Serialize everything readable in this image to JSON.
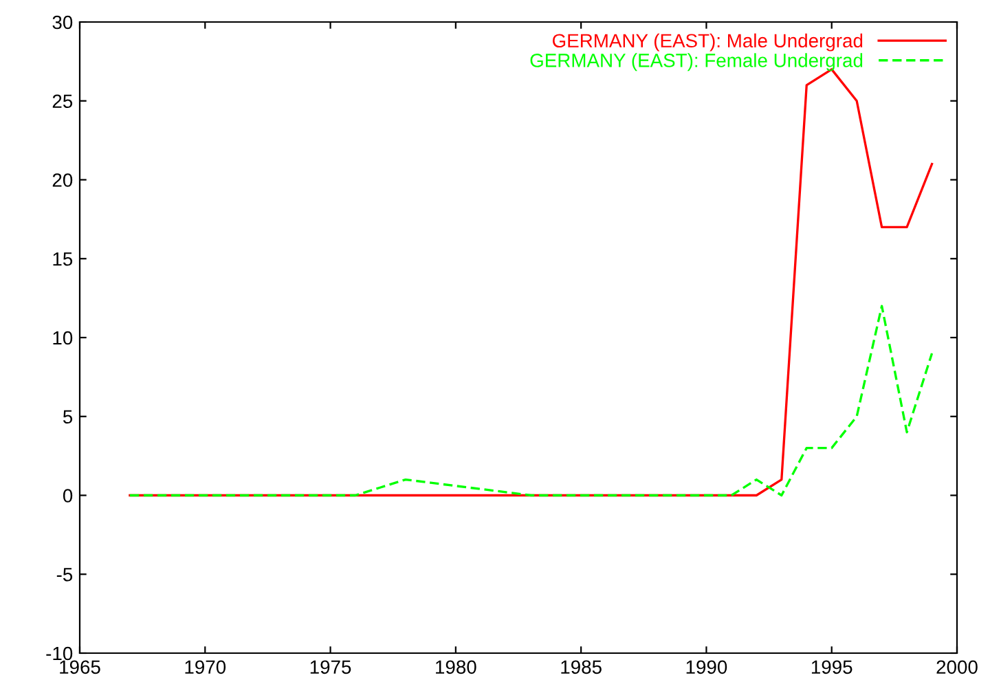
{
  "chart_data": {
    "type": "line",
    "x": [
      1967,
      1968,
      1969,
      1970,
      1971,
      1972,
      1973,
      1974,
      1975,
      1976,
      1977,
      1978,
      1979,
      1980,
      1981,
      1982,
      1983,
      1984,
      1985,
      1986,
      1987,
      1988,
      1989,
      1990,
      1991,
      1992,
      1993,
      1994,
      1995,
      1996,
      1997,
      1998,
      1999
    ],
    "series": [
      {
        "name": "GERMANY (EAST): Male Undergrad",
        "color": "#ff0000",
        "line_style": "solid",
        "values": [
          0,
          0,
          0,
          0,
          0,
          0,
          0,
          0,
          0,
          0,
          0,
          0,
          0,
          0,
          0,
          0,
          0,
          0,
          0,
          0,
          0,
          0,
          0,
          0,
          0,
          0,
          1,
          26,
          27,
          25,
          17,
          17,
          21
        ]
      },
      {
        "name": "GERMANY (EAST): Female Undergrad",
        "color": "#00ff00",
        "line_style": "dashed",
        "values": [
          0,
          0,
          0,
          0,
          0,
          0,
          0,
          0,
          0,
          0,
          0.5,
          1,
          0.8,
          0.6,
          0.4,
          0.2,
          0,
          0,
          0,
          0,
          0,
          0,
          0,
          0,
          0,
          1,
          0,
          3,
          3,
          5,
          12,
          4,
          9
        ]
      }
    ],
    "xlim": [
      1965,
      2000
    ],
    "xticks": [
      1965,
      1970,
      1975,
      1980,
      1985,
      1990,
      1995,
      2000
    ],
    "ylim": [
      -10,
      30
    ],
    "yticks": [
      -10,
      -5,
      0,
      5,
      10,
      15,
      20,
      25,
      30
    ],
    "grid": false,
    "legend": "top right",
    "marker": "none"
  }
}
